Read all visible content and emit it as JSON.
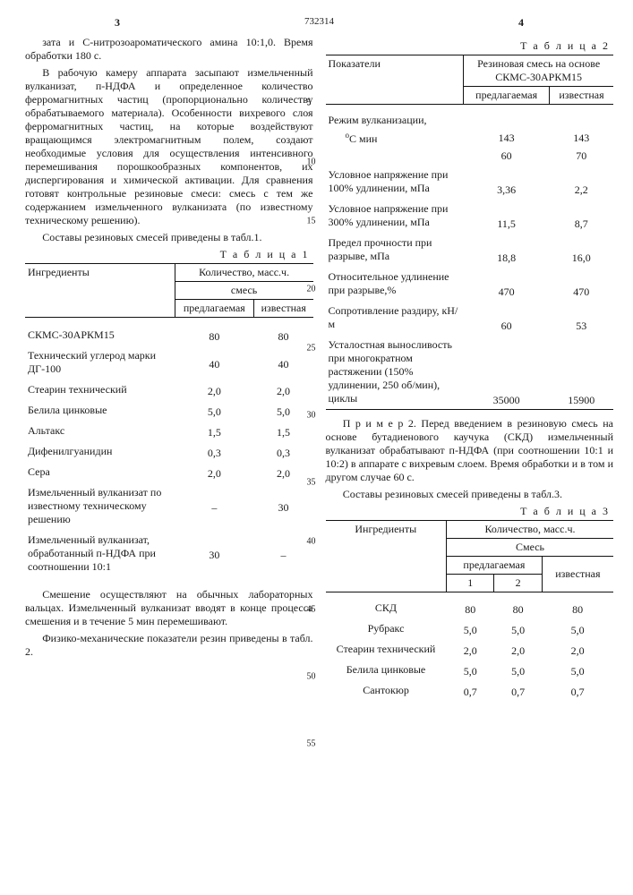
{
  "header": {
    "page_left": "3",
    "doc_no": "732314",
    "page_right": "4"
  },
  "left_col": {
    "para1": "зата и С-нитрозоароматического амина 10:1,0. Время обработки 180 с.",
    "para2": "В рабочую камеру аппарата засыпают измельченный вулканизат, п-НДФА и определенное количество ферромагнитных частиц (пропорционально количеству обрабатываемого материала). Особенности вихревого слоя ферромагнитных частиц, на которые воздействуют вращающимся электромагнитным полем, создают необходимые условия для осуществления интенсивного перемешивания порошкообразных компонентов, их диспергирования и химической активации. Для сравнения готовят контрольные резиновые смеси: смесь с тем же содержанием измельченного вулканизата (по известному техническому решению).",
    "para3": "Составы резиновых смесей приведены в табл.1.",
    "t1_cap": "Т а б л и ц а  1",
    "t1": {
      "hdr_ing": "Ингредиенты",
      "hdr_qty": "Количество, масс.ч.",
      "hdr_mix": "смесь",
      "hdr_prop": "предлагаемая",
      "hdr_known": "известная",
      "rows": [
        {
          "n": "СКМС-30АРКМ15",
          "a": "80",
          "b": "80"
        },
        {
          "n": "Технический углерод марки ДГ-100",
          "a": "40",
          "b": "40"
        },
        {
          "n": "Стеарин технический",
          "a": "2,0",
          "b": "2,0"
        },
        {
          "n": "Белила цинковые",
          "a": "5,0",
          "b": "5,0"
        },
        {
          "n": "Альтакс",
          "a": "1,5",
          "b": "1,5"
        },
        {
          "n": "Дифенилгуанидин",
          "a": "0,3",
          "b": "0,3"
        },
        {
          "n": "Сера",
          "a": "2,0",
          "b": "2,0"
        },
        {
          "n": "Измельченный вулканизат по известному техническому решению",
          "a": "–",
          "b": "30"
        },
        {
          "n": "Измельченный вулканизат, обработанный п-НДФА при соотношении 10:1",
          "a": "30",
          "b": "–"
        }
      ]
    },
    "para4": "Смешение осуществляют на обычных лабораторных вальцах. Измельченный вулканизат вводят в конце процесса смешения и в течение 5 мин перемешивают.",
    "para5": "Физико-механические показатели резин приведены в табл. 2."
  },
  "right_col": {
    "t2_cap": "Т а б л и ц а  2",
    "t2": {
      "hdr_ind": "Показатели",
      "hdr_mix": "Резиновая смесь на основе СКМС-30АРКМ15",
      "hdr_prop": "предлагаемая",
      "hdr_known": "известная",
      "rows": [
        {
          "n": "Режим вулканизации,",
          "u": "°С мин",
          "a1": "143",
          "b1": "143",
          "a2": "60",
          "b2": "70"
        },
        {
          "n": "Условное напряжение при 100% удлинении, мПа",
          "a": "3,36",
          "b": "2,2"
        },
        {
          "n": "Условное напряжение при 300% удлинении, мПа",
          "a": "11,5",
          "b": "8,7"
        },
        {
          "n": "Предел прочности при разрыве, мПа",
          "a": "18,8",
          "b": "16,0"
        },
        {
          "n": "Относительное удлинение при разрыве,%",
          "a": "470",
          "b": "470"
        },
        {
          "n": "Сопротивление раздиру, кН/м",
          "a": "60",
          "b": "53"
        },
        {
          "n": "Усталостная выносливость при многократном растяжении (150% удлинении, 250 об/мин), циклы",
          "a": "35000",
          "b": "15900"
        }
      ]
    },
    "para1": "П р и м е р  2. Перед введением в резиновую смесь на основе бутадиенового каучука (СКД) измельченный вулканизат обрабатывают п-НДФА (при соотношении 10:1 и 10:2) в аппарате с вихревым слоем. Время обработки и в том и другом случае 60 с.",
    "para2": "Составы резиновых смесей приведены в табл.3.",
    "t3_cap": "Т а б л и ц а  3",
    "t3": {
      "hdr_ing": "Ингредиенты",
      "hdr_qty": "Количество, масс.ч.",
      "hdr_mix": "Смесь",
      "hdr_prop": "предлагаемая",
      "hdr_known": "известная",
      "sub1": "1",
      "sub2": "2",
      "rows": [
        {
          "n": "СКД",
          "a": "80",
          "b": "80",
          "c": "80"
        },
        {
          "n": "Рубракс",
          "a": "5,0",
          "b": "5,0",
          "c": "5,0"
        },
        {
          "n": "Стеарин технический",
          "a": "2,0",
          "b": "2,0",
          "c": "2,0"
        },
        {
          "n": "Белила цинковые",
          "a": "5,0",
          "b": "5,0",
          "c": "5,0"
        },
        {
          "n": "Сантокюр",
          "a": "0,7",
          "b": "0,7",
          "c": "0,7"
        }
      ]
    }
  },
  "line_numbers": [
    "5",
    "10",
    "15",
    "20",
    "25",
    "30",
    "35",
    "40",
    "45",
    "50",
    "55"
  ],
  "line_positions_pct": [
    8,
    15,
    22,
    30,
    37,
    45,
    53,
    60,
    68,
    76,
    84
  ]
}
